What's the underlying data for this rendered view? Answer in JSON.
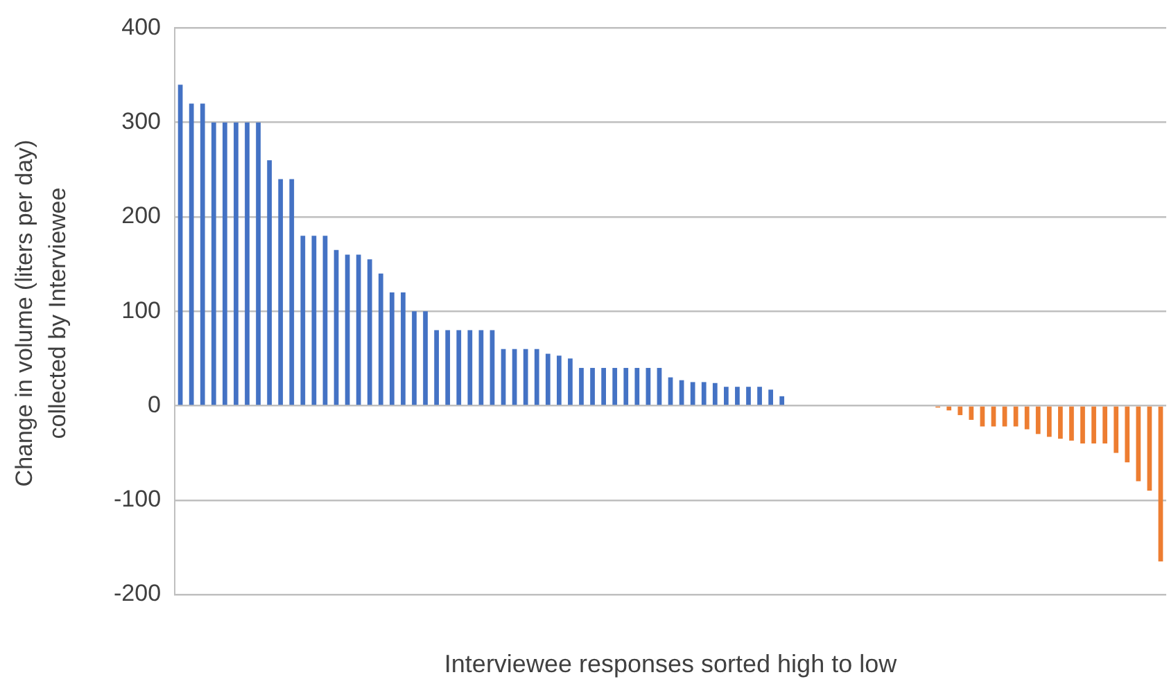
{
  "chart_data": {
    "type": "bar",
    "xlabel": "Interviewee responses sorted high to low",
    "ylabel": "Change in volume (liters per day) collected by Interviewee",
    "categories": [
      null,
      null,
      null,
      null,
      null,
      null,
      null,
      null,
      null,
      null,
      null,
      null,
      null,
      null,
      null,
      null,
      null,
      null,
      null,
      null,
      null,
      null,
      null,
      null,
      null,
      null,
      null,
      null,
      null,
      null,
      null,
      null,
      null,
      null,
      null,
      null,
      null,
      null,
      null,
      null,
      null,
      null,
      null,
      null,
      null,
      null,
      null,
      null,
      null,
      null,
      null,
      null,
      null,
      null,
      null,
      null,
      null,
      null,
      null,
      null,
      null,
      null,
      null,
      null,
      null,
      null,
      null,
      null,
      null,
      null,
      null,
      null,
      null,
      null,
      null,
      null,
      null,
      null,
      null,
      null,
      null,
      null,
      null,
      null,
      null,
      null,
      null,
      null,
      null
    ],
    "values": [
      340,
      320,
      320,
      300,
      300,
      300,
      300,
      300,
      260,
      240,
      240,
      180,
      180,
      180,
      165,
      160,
      160,
      155,
      140,
      120,
      120,
      100,
      100,
      80,
      80,
      80,
      80,
      80,
      80,
      60,
      60,
      60,
      60,
      55,
      53,
      50,
      40,
      40,
      40,
      40,
      40,
      40,
      40,
      40,
      30,
      27,
      25,
      25,
      24,
      20,
      20,
      20,
      20,
      17,
      10,
      0,
      0,
      0,
      0,
      0,
      0,
      0,
      0,
      0,
      0,
      0,
      0,
      0,
      -2,
      -5,
      -10,
      -15,
      -22,
      -22,
      -22,
      -22,
      -25,
      -30,
      -33,
      -35,
      -37,
      -40,
      -40,
      -40,
      -50,
      -60,
      -80,
      -90,
      -165
    ],
    "colors": [
      "#4472c4",
      "#4472c4",
      "#4472c4",
      "#4472c4",
      "#4472c4",
      "#4472c4",
      "#4472c4",
      "#4472c4",
      "#4472c4",
      "#4472c4",
      "#4472c4",
      "#4472c4",
      "#4472c4",
      "#4472c4",
      "#4472c4",
      "#4472c4",
      "#4472c4",
      "#4472c4",
      "#4472c4",
      "#4472c4",
      "#4472c4",
      "#4472c4",
      "#4472c4",
      "#4472c4",
      "#4472c4",
      "#4472c4",
      "#4472c4",
      "#4472c4",
      "#4472c4",
      "#4472c4",
      "#4472c4",
      "#4472c4",
      "#4472c4",
      "#4472c4",
      "#4472c4",
      "#4472c4",
      "#4472c4",
      "#4472c4",
      "#4472c4",
      "#4472c4",
      "#4472c4",
      "#4472c4",
      "#4472c4",
      "#4472c4",
      "#4472c4",
      "#4472c4",
      "#4472c4",
      "#4472c4",
      "#4472c4",
      "#4472c4",
      "#4472c4",
      "#4472c4",
      "#4472c4",
      "#4472c4",
      "#4472c4",
      "#4472c4",
      "#4472c4",
      "#4472c4",
      "#4472c4",
      "#4472c4",
      "#4472c4",
      "#4472c4",
      "#ed7d31",
      "#ed7d31",
      "#ed7d31",
      "#ed7d31",
      "#ed7d31",
      "#ed7d31",
      "#ed7d31",
      "#ed7d31",
      "#ed7d31",
      "#ed7d31",
      "#ed7d31",
      "#ed7d31",
      "#ed7d31",
      "#ed7d31",
      "#ed7d31",
      "#ed7d31",
      "#ed7d31",
      "#ed7d31",
      "#ed7d31",
      "#ed7d31",
      "#ed7d31",
      "#ed7d31",
      "#ed7d31",
      "#ed7d31",
      "#ed7d31",
      "#ed7d31",
      "#ed7d31"
    ],
    "ylim": [
      -200,
      400
    ],
    "yticks": [
      -200,
      -100,
      0,
      100,
      200,
      300,
      400
    ],
    "grid": "y",
    "legend": false
  }
}
